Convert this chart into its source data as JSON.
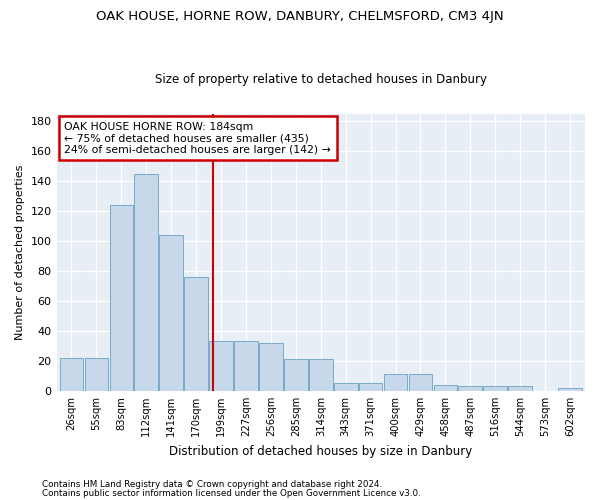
{
  "title": "OAK HOUSE, HORNE ROW, DANBURY, CHELMSFORD, CM3 4JN",
  "subtitle": "Size of property relative to detached houses in Danbury",
  "xlabel": "Distribution of detached houses by size in Danbury",
  "ylabel": "Number of detached properties",
  "bar_color": "#c8d8eb",
  "bar_edge_color": "#7aaac8",
  "background_color": "#e8eef5",
  "grid_color": "#ffffff",
  "fig_background": "#ffffff",
  "categories": [
    "26sqm",
    "55sqm",
    "83sqm",
    "112sqm",
    "141sqm",
    "170sqm",
    "199sqm",
    "227sqm",
    "256sqm",
    "285sqm",
    "314sqm",
    "343sqm",
    "371sqm",
    "400sqm",
    "429sqm",
    "458sqm",
    "487sqm",
    "516sqm",
    "544sqm",
    "573sqm",
    "602sqm"
  ],
  "values": [
    22,
    22,
    124,
    145,
    104,
    76,
    33,
    33,
    32,
    21,
    21,
    5,
    5,
    11,
    11,
    4,
    3,
    3,
    3,
    0,
    2
  ],
  "vline_bin_index": 5.67,
  "annotation_text": "OAK HOUSE HORNE ROW: 184sqm\n← 75% of detached houses are smaller (435)\n24% of semi-detached houses are larger (142) →",
  "annotation_box_color": "#ffffff",
  "annotation_box_edge": "#cc0000",
  "vline_color": "#cc0000",
  "footer_line1": "Contains HM Land Registry data © Crown copyright and database right 2024.",
  "footer_line2": "Contains public sector information licensed under the Open Government Licence v3.0.",
  "ylim": [
    0,
    185
  ],
  "yticks": [
    0,
    20,
    40,
    60,
    80,
    100,
    120,
    140,
    160,
    180
  ]
}
